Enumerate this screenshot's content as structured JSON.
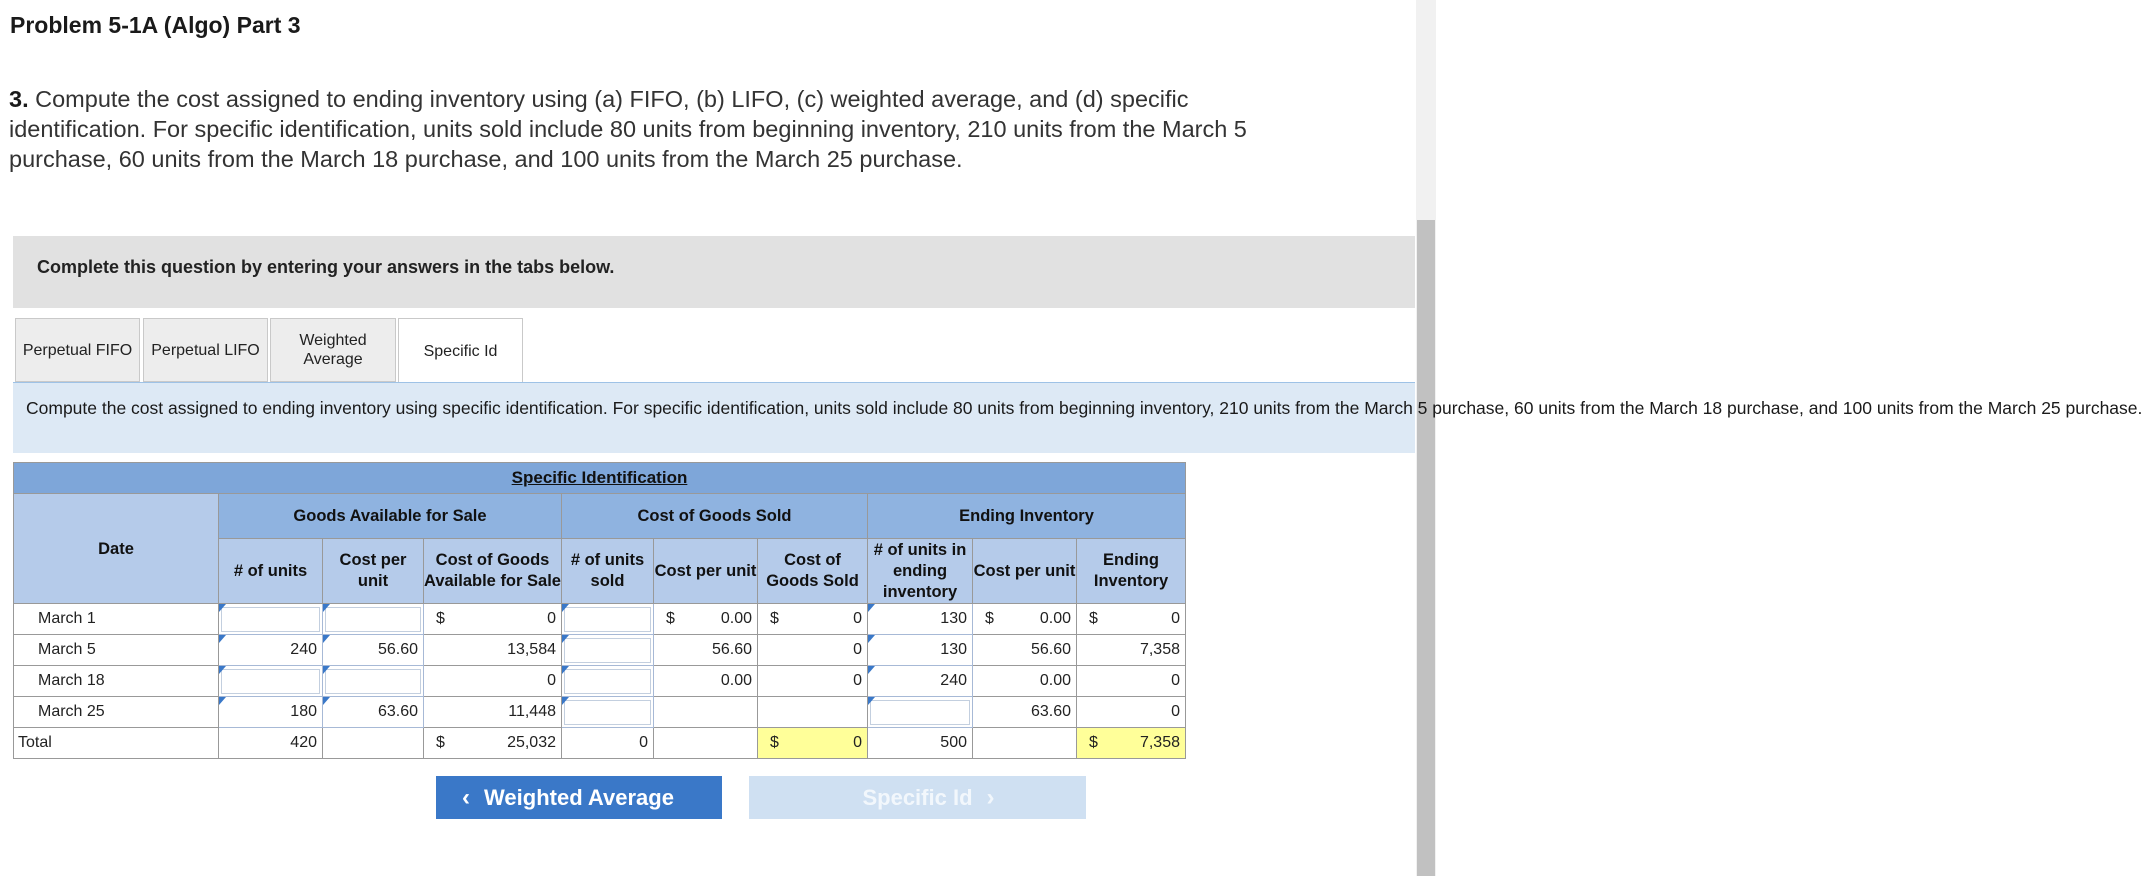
{
  "title": "Problem 5-1A (Algo) Part 3",
  "question": {
    "number": "3.",
    "text": " Compute the cost assigned to ending inventory using (a) FIFO, (b) LIFO, (c) weighted average, and (d) specific identification. For specific identification, units sold include 80 units from beginning inventory, 210 units from the March 5 purchase, 60 units from the March 18 purchase, and 100 units from the March 25 purchase."
  },
  "banner": "Complete this question by entering your answers in the tabs below.",
  "tabs": [
    {
      "label": "Perpetual FIFO"
    },
    {
      "label": "Perpetual LIFO"
    },
    {
      "label": "Weighted Average"
    },
    {
      "label": "Specific Id"
    }
  ],
  "instruction": "Compute the cost assigned to ending inventory using specific identification. For specific identification, units sold include 80 units from beginning inventory, 210 units from the March 5 purchase, 60 units from the March 18 purchase, and 100 units from the March 25 purchase.",
  "table": {
    "title": "Specific Identification",
    "date_header": "Date",
    "group_headers": {
      "available": "Goods Available for Sale",
      "cogs": "Cost of Goods Sold",
      "ending": "Ending Inventory"
    },
    "col_headers": {
      "units": "# of units",
      "cost_per_unit": "Cost per unit",
      "cost_available": "Cost of Goods Available for Sale",
      "units_sold": "# of units sold",
      "cogs_cost_per_unit": "Cost per unit",
      "cogs": "Cost of Goods Sold",
      "units_ending": "# of units in ending inventory",
      "ending_cost_per_unit": "Cost per unit",
      "ending_inventory": "Ending Inventory"
    },
    "currency": "$",
    "rows": [
      {
        "date": "March 1",
        "units": "",
        "cost_per_unit": "",
        "cost_available": "0",
        "units_sold": "",
        "cogs_cost_per_unit": "0.00",
        "cogs": "0",
        "units_ending": "130",
        "ending_cost_per_unit": "0.00",
        "ending_inventory": "0"
      },
      {
        "date": "March 5",
        "units": "240",
        "cost_per_unit": "56.60",
        "cost_available": "13,584",
        "units_sold": "",
        "cogs_cost_per_unit": "56.60",
        "cogs": "0",
        "units_ending": "130",
        "ending_cost_per_unit": "56.60",
        "ending_inventory": "7,358"
      },
      {
        "date": "March 18",
        "units": "",
        "cost_per_unit": "",
        "cost_available": "0",
        "units_sold": "",
        "cogs_cost_per_unit": "0.00",
        "cogs": "0",
        "units_ending": "240",
        "ending_cost_per_unit": "0.00",
        "ending_inventory": "0"
      },
      {
        "date": "March 25",
        "units": "180",
        "cost_per_unit": "63.60",
        "cost_available": "11,448",
        "units_sold": "",
        "cogs_cost_per_unit": "",
        "cogs": "",
        "units_ending": "",
        "ending_cost_per_unit": "63.60",
        "ending_inventory": "0"
      }
    ],
    "total": {
      "label": "Total",
      "units": "420",
      "cost_available": "25,032",
      "units_sold": "0",
      "cogs": "0",
      "units_ending": "500",
      "ending_inventory": "7,358"
    }
  },
  "nav": {
    "prev_label": "Weighted Average",
    "next_label": "Specific Id"
  },
  "colors": {
    "header_blue": "#7ea6d9",
    "subheader_blue": "#b5cbea",
    "button_blue": "#3a78c8",
    "highlight_yellow": "#ffff99"
  }
}
